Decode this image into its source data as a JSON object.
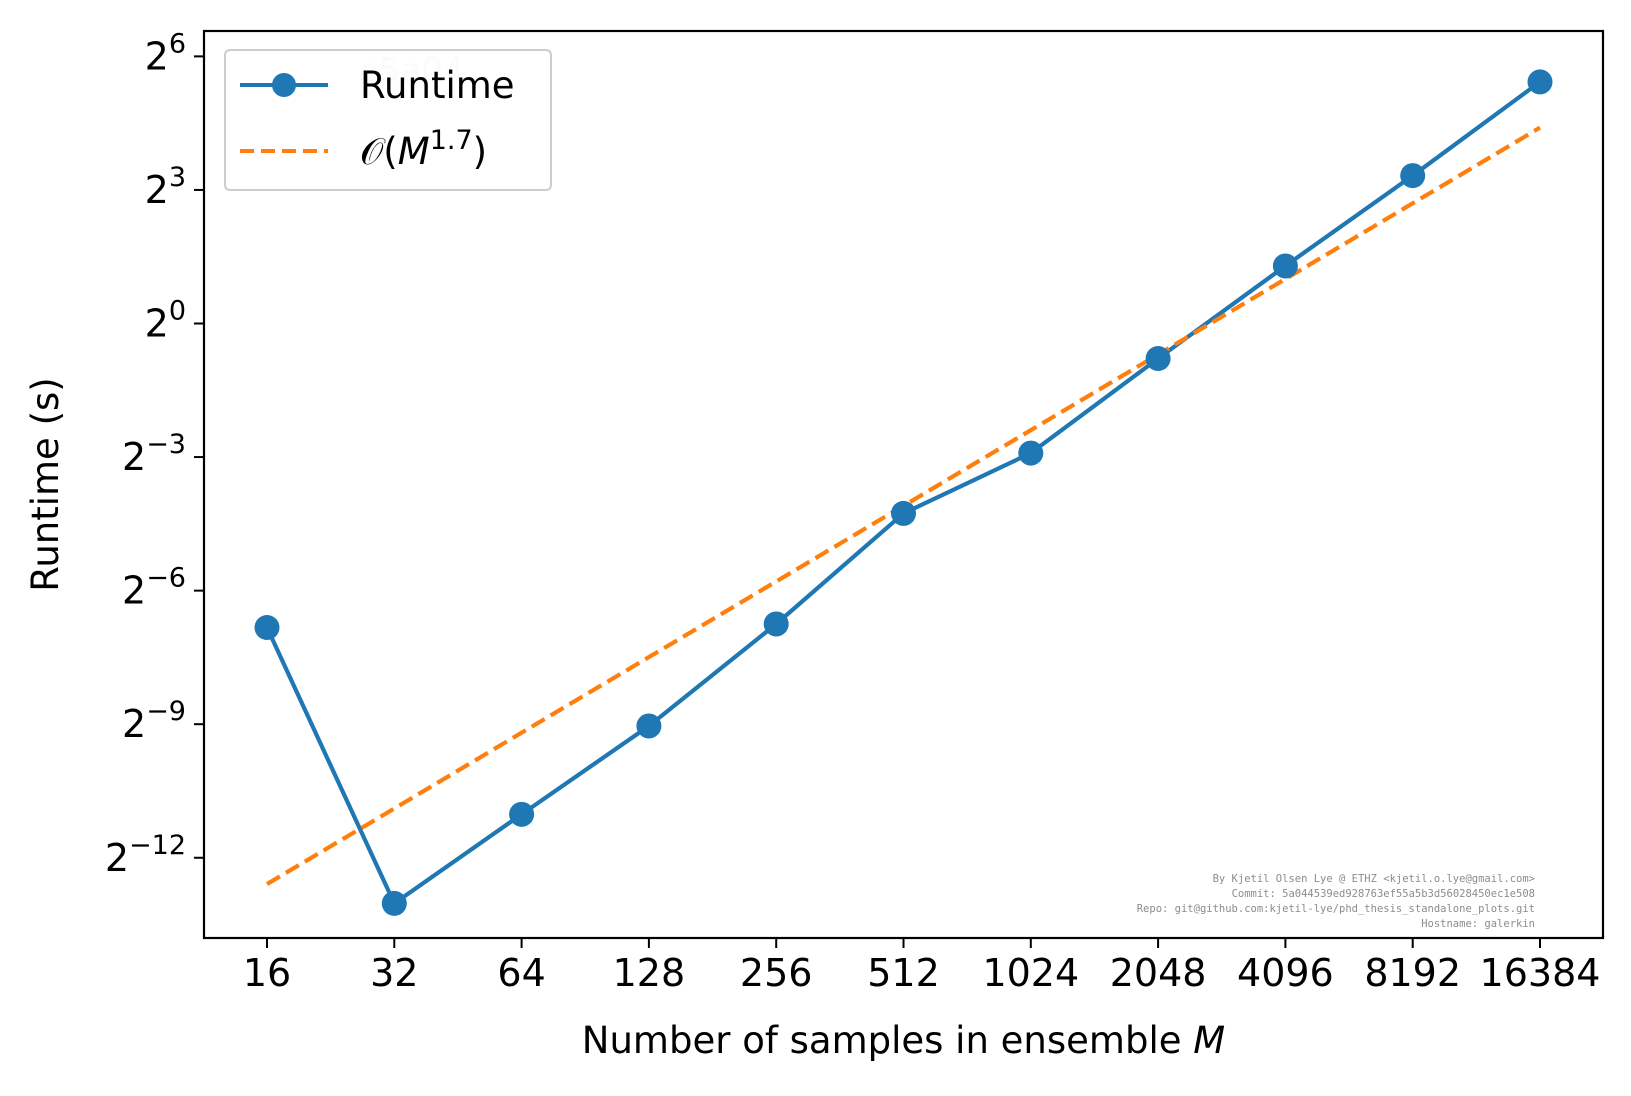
{
  "chart_data": {
    "type": "line",
    "xscale": "log2",
    "yscale": "log2",
    "x": [
      16,
      32,
      64,
      128,
      256,
      512,
      1024,
      2048,
      4096,
      8192,
      16384
    ],
    "xticks": [
      "16",
      "32",
      "64",
      "128",
      "256",
      "512",
      "1024",
      "2048",
      "4096",
      "8192",
      "16384"
    ],
    "yticks": [
      {
        "base": "2",
        "exp": "6",
        "value": 64
      },
      {
        "base": "2",
        "exp": "3",
        "value": 8
      },
      {
        "base": "2",
        "exp": "0",
        "value": 1
      },
      {
        "base": "2",
        "exp": "−3",
        "value": 0.125
      },
      {
        "base": "2",
        "exp": "−6",
        "value": 0.015625
      },
      {
        "base": "2",
        "exp": "−9",
        "value": 0.001953125
      },
      {
        "base": "2",
        "exp": "−12",
        "value": 0.000244140625
      }
    ],
    "ylim": [
      7e-05,
      95
    ],
    "xlabel": "Number of samples in ensemble M",
    "xlabel_prefix": "Number of samples in ensemble ",
    "xlabel_var": "M",
    "ylabel": "Runtime (s)",
    "series": [
      {
        "name": "Runtime",
        "style": "solid-marker",
        "color": "#1f77b4",
        "values": [
          0.0088,
          0.00012,
          0.00048,
          0.0019,
          0.0093,
          0.052,
          0.133,
          0.58,
          2.45,
          10.0,
          43.0
        ]
      },
      {
        "name": "𝒪(M^1.7)",
        "name_parts": {
          "prefix": "𝒪(",
          "var": "M",
          "exp": "1.7",
          "suffix": ")"
        },
        "style": "dashed",
        "color": "#ff7f0e",
        "values": [
          0.000162,
          0.000526,
          0.00171,
          0.00555,
          0.018,
          0.0585,
          0.19,
          0.617,
          2.0,
          6.5,
          21.1
        ]
      }
    ],
    "legend": "top-left",
    "grid": false,
    "watermark": "e5a04",
    "credits": [
      "By Kjetil Olsen Lye @ ETHZ <kjetil.o.lye@gmail.com>",
      "Commit: 5a044539ed928763ef55a5b3d56028450ec1e508",
      "Repo: git@github.com:kjetil-lye/phd_thesis_standalone_plots.git",
      "Hostname: galerkin"
    ]
  }
}
